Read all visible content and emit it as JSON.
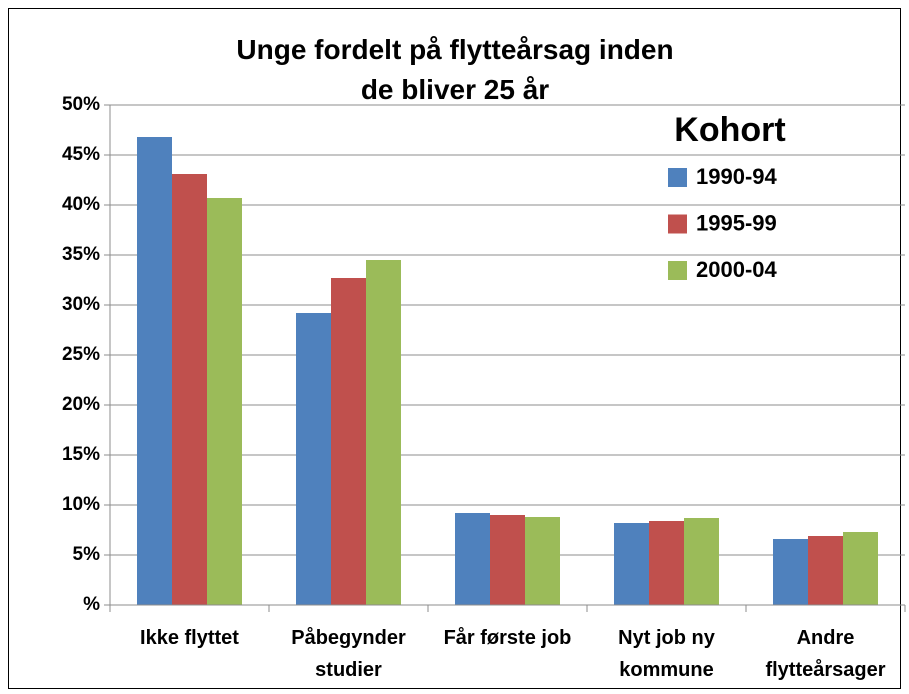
{
  "chart_data": {
    "type": "bar",
    "title": "Unge fordelt på flytteårsag inden de bliver 25 år",
    "legend_title": "Kohort",
    "legend_position": "upper right",
    "categories": [
      "Ikke flyttet",
      "Påbegynder studier",
      "Får første job",
      "Nyt job ny kommune",
      "Andre flytteårsager"
    ],
    "series": [
      {
        "name": "1990-94",
        "color": "#4f81bd",
        "values": [
          46.8,
          29.2,
          9.2,
          8.2,
          6.6
        ]
      },
      {
        "name": "1995-99",
        "color": "#c0504d",
        "values": [
          43.1,
          32.7,
          9.0,
          8.4,
          6.9
        ]
      },
      {
        "name": "2000-04",
        "color": "#9bbb59",
        "values": [
          40.7,
          34.5,
          8.8,
          8.7,
          7.3
        ]
      }
    ],
    "ylim": [
      0,
      50
    ],
    "yticks": [
      {
        "value": 0,
        "label": "%"
      },
      {
        "value": 5,
        "label": "5%"
      },
      {
        "value": 10,
        "label": "10%"
      },
      {
        "value": 15,
        "label": "15%"
      },
      {
        "value": 20,
        "label": "20%"
      },
      {
        "value": 25,
        "label": "25%"
      },
      {
        "value": 30,
        "label": "30%"
      },
      {
        "value": 35,
        "label": "35%"
      },
      {
        "value": 40,
        "label": "40%"
      },
      {
        "value": 45,
        "label": "45%"
      },
      {
        "value": 50,
        "label": "50%"
      }
    ],
    "grid": true
  }
}
